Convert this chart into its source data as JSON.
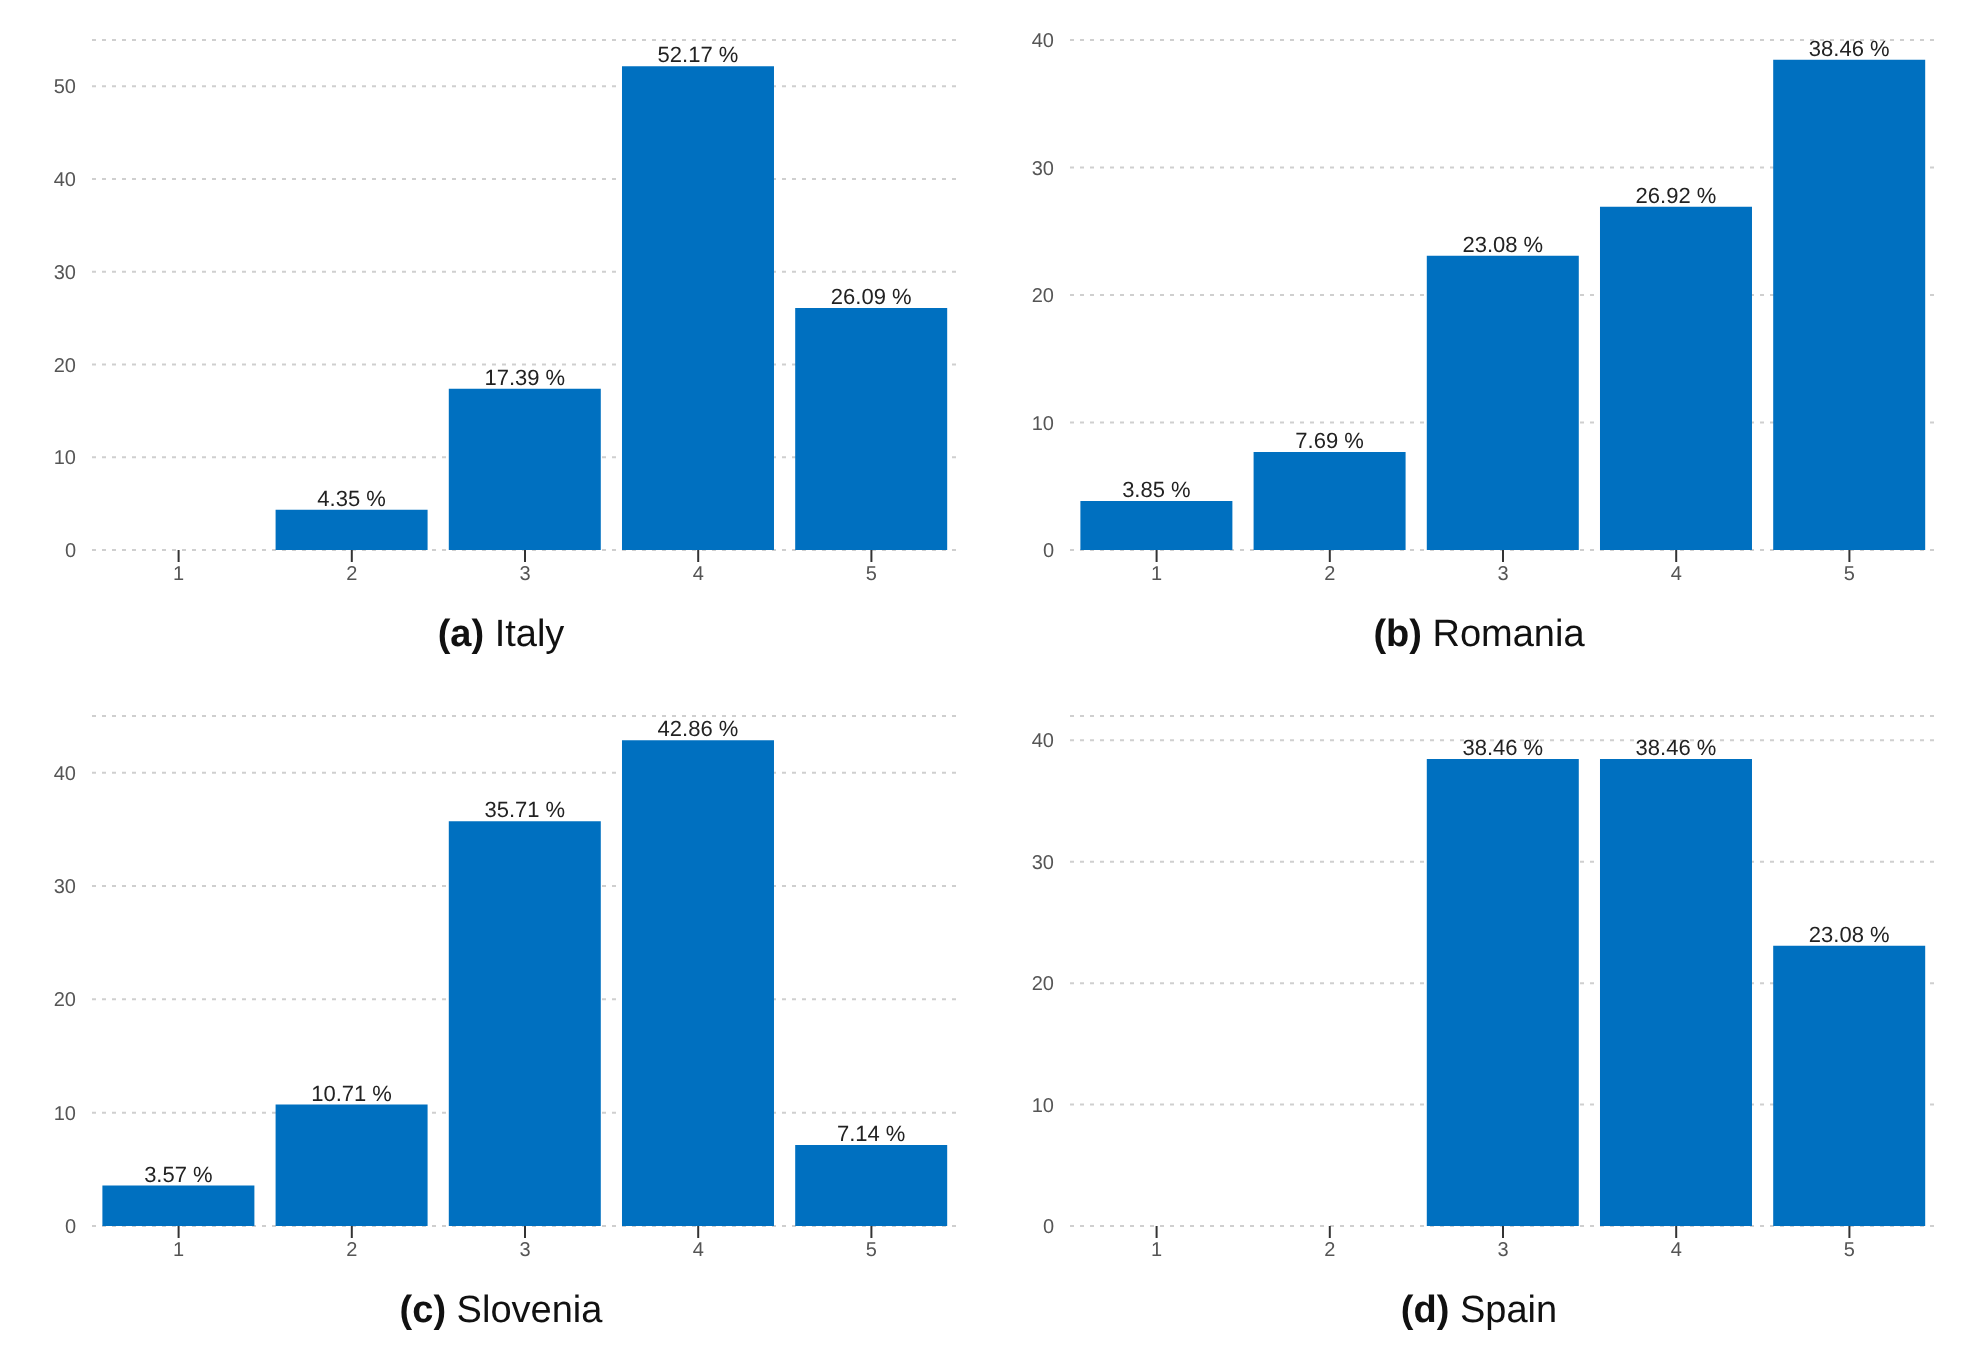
{
  "chart_data": [
    {
      "type": "bar",
      "title": "(a) Italy",
      "categories": [
        "1",
        "2",
        "3",
        "4",
        "5"
      ],
      "values": [
        null,
        4.35,
        17.39,
        52.17,
        26.09
      ],
      "value_labels": [
        null,
        "4.35 %",
        "17.39 %",
        "52.17 %",
        "26.09 %"
      ],
      "color": "#0070c0",
      "ylim": [
        0,
        55
      ],
      "yticks": [
        0,
        10,
        20,
        30,
        40,
        50
      ],
      "grid": "y",
      "legend": false
    },
    {
      "type": "bar",
      "title": "(b) Romania",
      "categories": [
        "1",
        "2",
        "3",
        "4",
        "5"
      ],
      "values": [
        3.85,
        7.69,
        23.08,
        26.92,
        38.46
      ],
      "value_labels": [
        "3.85 %",
        "7.69 %",
        "23.08 %",
        "26.92 %",
        "38.46 %"
      ],
      "color": "#0070c0",
      "ylim": [
        0,
        40
      ],
      "yticks": [
        0,
        10,
        20,
        30,
        40
      ],
      "grid": "y",
      "legend": false
    },
    {
      "type": "bar",
      "title": "(c) Slovenia",
      "categories": [
        "1",
        "2",
        "3",
        "4",
        "5"
      ],
      "values": [
        3.57,
        10.71,
        35.71,
        42.86,
        7.14
      ],
      "value_labels": [
        "3.57 %",
        "10.71 %",
        "35.71 %",
        "42.86 %",
        "7.14 %"
      ],
      "color": "#0070c0",
      "ylim": [
        0,
        45
      ],
      "yticks": [
        0,
        10,
        20,
        30,
        40
      ],
      "grid": "y",
      "legend": false
    },
    {
      "type": "bar",
      "title": "(d) Spain",
      "categories": [
        "1",
        "2",
        "3",
        "4",
        "5"
      ],
      "values": [
        null,
        null,
        38.46,
        38.46,
        23.08
      ],
      "value_labels": [
        null,
        null,
        "38.46 %",
        "38.46 %",
        "23.08 %"
      ],
      "color": "#0070c0",
      "ylim": [
        0,
        42
      ],
      "yticks": [
        0,
        10,
        20,
        30,
        40
      ],
      "grid": "y",
      "legend": false
    }
  ]
}
